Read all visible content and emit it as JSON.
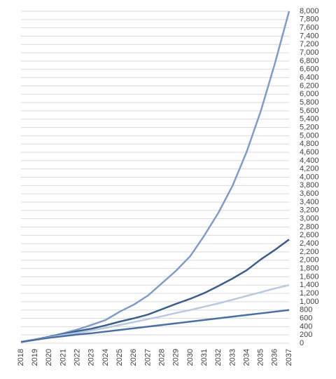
{
  "chart_data": {
    "type": "line",
    "categories": [
      "2018",
      "2019",
      "2020",
      "2021",
      "2022",
      "2023",
      "2024",
      "2025",
      "2026",
      "2027",
      "2028",
      "2029",
      "2030",
      "2031",
      "2032",
      "2033",
      "2034",
      "2035",
      "2036",
      "2037"
    ],
    "series": [
      {
        "color": "#7f9cc9",
        "values": [
          30,
          90,
          160,
          240,
          330,
          440,
          560,
          760,
          930,
          1150,
          1450,
          1750,
          2100,
          2600,
          3150,
          3800,
          4620,
          5600,
          6750,
          8000
        ]
      },
      {
        "color": "#3b5e8c",
        "values": [
          30,
          90,
          150,
          220,
          290,
          350,
          430,
          520,
          600,
          690,
          820,
          950,
          1070,
          1210,
          1380,
          1560,
          1760,
          2020,
          2250,
          2500
        ]
      },
      {
        "color": "#b9c9df",
        "values": [
          30,
          85,
          140,
          200,
          250,
          310,
          370,
          440,
          510,
          580,
          650,
          730,
          800,
          880,
          960,
          1050,
          1140,
          1230,
          1320,
          1400
        ]
      },
      {
        "color": "#4a70a3",
        "values": [
          30,
          80,
          130,
          170,
          210,
          240,
          280,
          320,
          360,
          400,
          440,
          480,
          520,
          560,
          600,
          640,
          680,
          720,
          760,
          800
        ]
      }
    ],
    "ylim": [
      0,
      8000
    ],
    "yticks": [
      0,
      200,
      400,
      600,
      800,
      {
        "value": 1000,
        "label": "1,000"
      },
      {
        "value": 1200,
        "label": "1,200"
      },
      {
        "value": 1400,
        "label": "1,400"
      },
      {
        "value": 1600,
        "label": "1,600"
      },
      {
        "value": 1800,
        "label": "1,800"
      },
      {
        "value": 2000,
        "label": "2,000"
      },
      {
        "value": 2200,
        "label": "2,200"
      },
      {
        "value": 2400,
        "label": "2,400"
      },
      {
        "value": 2600,
        "label": "2,600"
      },
      {
        "value": 2800,
        "label": "2,800"
      },
      {
        "value": 3000,
        "label": "3,000"
      },
      {
        "value": 3200,
        "label": "3,200"
      },
      {
        "value": 3400,
        "label": "3,400"
      },
      {
        "value": 3600,
        "label": "3,600"
      },
      {
        "value": 3800,
        "label": "3,800"
      },
      {
        "value": 4000,
        "label": "4,000"
      },
      {
        "value": 4200,
        "label": "4,200"
      },
      {
        "value": 4400,
        "label": "4,400"
      },
      {
        "value": 4600,
        "label": "4,600"
      },
      {
        "value": 4800,
        "label": "4,800"
      },
      {
        "value": 5000,
        "label": "5,000"
      },
      {
        "value": 5200,
        "label": "5,200"
      },
      {
        "value": 5400,
        "label": "5,400"
      },
      {
        "value": 5600,
        "label": "5,600"
      },
      {
        "value": 5800,
        "label": "5,800"
      },
      {
        "value": 6000,
        "label": "6,000"
      },
      {
        "value": 6200,
        "label": "6,200"
      },
      {
        "value": 6400,
        "label": "6,400"
      },
      {
        "value": 6600,
        "label": "6,600"
      },
      {
        "value": 6800,
        "label": "6,800"
      },
      {
        "value": 7000,
        "label": "7,000"
      },
      {
        "value": 7200,
        "label": "7,200"
      },
      {
        "value": 7400,
        "label": "7,400"
      },
      {
        "value": 7600,
        "label": "7,600"
      },
      {
        "value": 7800,
        "label": "7,800"
      },
      {
        "value": 8000,
        "label": "8,000"
      }
    ],
    "grid": true
  }
}
